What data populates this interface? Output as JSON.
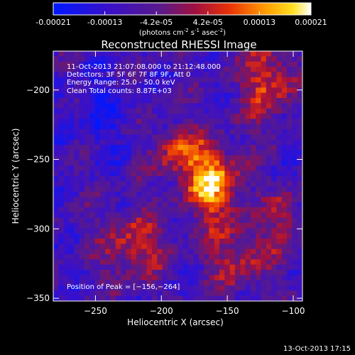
{
  "colorbar": {
    "ticks": [
      "-0.00021",
      "-0.00013",
      "-4.2e-05",
      "4.2e-05",
      "0.00013",
      "0.00021"
    ],
    "unit_label": "(photons cm",
    "unit_exp1": "-2",
    "unit_mid": " s",
    "unit_exp2": "-1",
    "unit_tail": " asec",
    "unit_exp3": "-2",
    "unit_close": ")",
    "vmin": -0.00021,
    "vmax": 0.00021
  },
  "chart_data": {
    "type": "heatmap",
    "title": "Reconstructed RHESSI Image",
    "xlabel": "Heliocentric X (arcsec)",
    "ylabel": "Heliocentric Y (arcsec)",
    "xlim": [
      -282,
      -93
    ],
    "ylim": [
      -352,
      -172
    ],
    "xticks": [
      -250,
      -200,
      -150,
      -100
    ],
    "yticks": [
      -200,
      -250,
      -300,
      -350
    ],
    "xtick_labels": [
      "−250",
      "−200",
      "−150",
      "−100"
    ],
    "ytick_labels": [
      "−200",
      "−250",
      "−300",
      "−350"
    ],
    "colormap": "blue-purple-red-yellow-white",
    "peak": {
      "x": -156,
      "y": -264
    },
    "annotations": {
      "time": "11-Oct-2013 21:07:08.000 to 21:12:48.000",
      "detectors": "Detectors: 3F 5F 6F 7F 8F 9F, Att 0",
      "energy": "Energy Range: 25.0 - 50.0 keV",
      "clean": "Clean    Total counts: 8.87E+03",
      "peak_label": "Position of Peak = [−156,−264]"
    }
  },
  "footer": {
    "date": "13-Oct-2013 17:15"
  }
}
